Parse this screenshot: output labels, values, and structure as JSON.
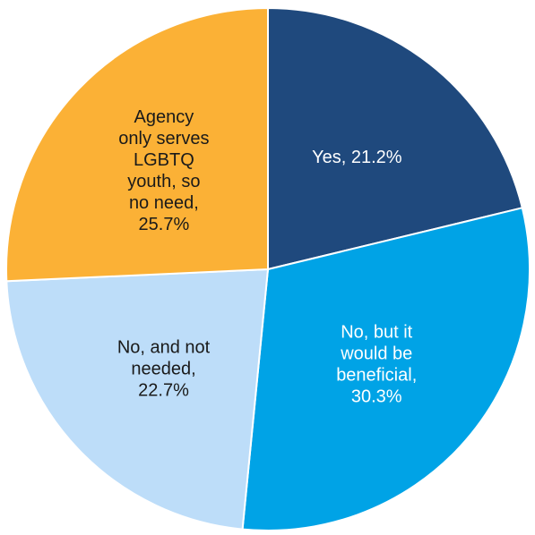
{
  "chart_data": {
    "type": "pie",
    "title": "",
    "slices": [
      {
        "category": "Yes",
        "value": 21.2,
        "label_lines": [
          "Yes, 21.2%"
        ],
        "color": "#1F497D",
        "label_color": "#ffffff"
      },
      {
        "category": "No, but it would be beneficial",
        "value": 30.3,
        "label_lines": [
          "No, but it",
          "would be",
          "beneficial,",
          "30.3%"
        ],
        "color": "#00A3E6",
        "label_color": "#ffffff"
      },
      {
        "category": "No, and not needed",
        "value": 22.7,
        "label_lines": [
          "No, and not",
          "needed,",
          "22.7%"
        ],
        "color": "#BDDDF9",
        "label_color": "#1a1a1a"
      },
      {
        "category": "Agency only serves LGBTQ youth, so no need",
        "value": 25.7,
        "label_lines": [
          "Agency",
          "only serves",
          "LGBTQ",
          "youth, so",
          "no need,",
          "25.7%"
        ],
        "color": "#FBB136",
        "label_color": "#1a1a1a"
      }
    ],
    "legend": "none",
    "start_angle": "12 o'clock",
    "direction": "clockwise"
  }
}
